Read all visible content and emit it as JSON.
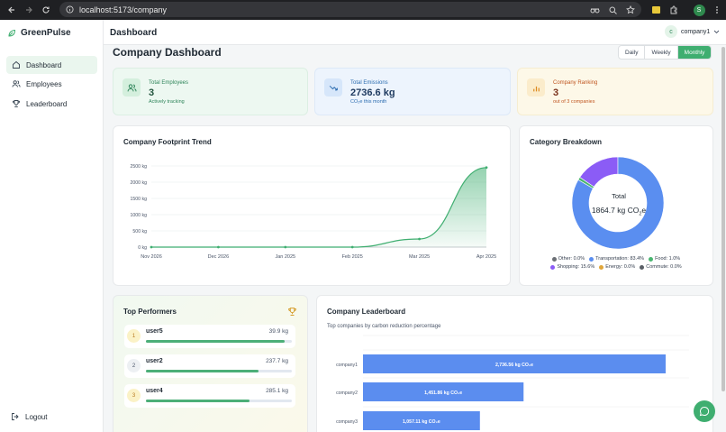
{
  "browser": {
    "url": "localhost:5173/company",
    "profile_initial": "S"
  },
  "app": {
    "brand": "GreenPulse",
    "brand_color": "#3fae70"
  },
  "sidebar": {
    "items": [
      {
        "label": "Dashboard",
        "icon": "home-icon",
        "active": true
      },
      {
        "label": "Employees",
        "icon": "users-icon",
        "active": false
      },
      {
        "label": "Leaderboard",
        "icon": "trophy-icon",
        "active": false
      }
    ],
    "logout_label": "Logout"
  },
  "header": {
    "title": "Dashboard",
    "user_initial": "c",
    "user_name": "company1"
  },
  "main": {
    "title": "Company Dashboard",
    "ranges": [
      "Daily",
      "Weekly",
      "Monthly"
    ],
    "selected_range": "Monthly"
  },
  "stats": [
    {
      "label": "Total Employees",
      "value": "3",
      "sub": "Actively tracking",
      "icon": "users-icon",
      "color": "#2f855a",
      "bg": "#edf8f1"
    },
    {
      "label": "Total Emissions",
      "value": "2736.6 kg",
      "sub": "CO₂e this month",
      "icon": "trend-down-icon",
      "color": "#2b6cb0",
      "bg": "#edf4fd"
    },
    {
      "label": "Company Ranking",
      "value": "3",
      "sub": "out of 3 companies",
      "icon": "bar-chart-icon",
      "color": "#c05621",
      "bg": "#fdf8e8"
    }
  ],
  "trend": {
    "title": "Company Footprint Trend",
    "chart_data": {
      "type": "area",
      "categories": [
        "Nov 2026",
        "Dec 2026",
        "Jan 2025",
        "Feb 2025",
        "Mar 2025",
        "Apr 2025"
      ],
      "values": [
        0,
        0,
        0,
        0,
        250,
        2450
      ],
      "yticks": [
        "2500 kg",
        "2000 kg",
        "1500 kg",
        "1000 kg",
        "500 kg",
        "0 kg"
      ],
      "ylim": [
        0,
        2500
      ],
      "color": "#3fae70"
    }
  },
  "category": {
    "title": "Category Breakdown",
    "center_label": "Total",
    "center_value": "1864.7 kg CO",
    "center_sub": "2",
    "center_suffix": "e",
    "chart_data": {
      "type": "pie",
      "labels": [
        "Other",
        "Transportation",
        "Food",
        "Shopping",
        "Energy",
        "Commute"
      ],
      "values": [
        0.0,
        83.4,
        1.0,
        15.6,
        0.0,
        0.0
      ],
      "colors": [
        "#6b6f75",
        "#5a8ef0",
        "#49b56f",
        "#8b5cf6",
        "#e0a63a",
        "#5a5f66"
      ]
    },
    "legend": [
      "Other: 0.0%",
      "Transportation: 83.4%",
      "Food: 1.0%",
      "Shopping: 15.6%",
      "Energy: 0.0%",
      "Commute: 0.0%"
    ]
  },
  "performers": {
    "title": "Top Performers",
    "items": [
      {
        "rank": "1",
        "name": "user5",
        "value": "39.9 kg",
        "progress": 0.95
      },
      {
        "rank": "2",
        "name": "user2",
        "value": "237.7 kg",
        "progress": 0.77
      },
      {
        "rank": "3",
        "name": "user4",
        "value": "285.1 kg",
        "progress": 0.71
      }
    ]
  },
  "leaderboard": {
    "title": "Company Leaderboard",
    "subtitle": "Top companies by carbon reduction percentage",
    "chart_data": {
      "type": "bar",
      "orientation": "horizontal",
      "categories": [
        "company1",
        "company2",
        "company3"
      ],
      "values": [
        2736.6,
        1451.86,
        1057.11
      ],
      "labels": [
        "2,736.56 kg CO₂e",
        "1,451.86 kg CO₂e",
        "1,057.11 kg CO₂e"
      ],
      "xlim": [
        0,
        2736.6
      ],
      "color": "#5b8def"
    }
  }
}
